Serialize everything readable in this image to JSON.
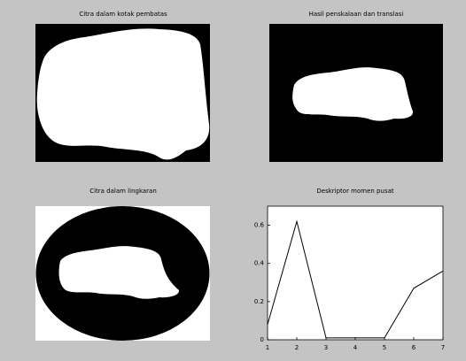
{
  "images": [
    {
      "title": "Citra dalam kotak pembatas"
    },
    {
      "title": "Hasil penskalaan dan translasi"
    },
    {
      "title": "Citra dalam lingkaran"
    }
  ],
  "chart_data": {
    "type": "line",
    "title": "Deskriptor momen pusat",
    "x": [
      1,
      2,
      3,
      4,
      5,
      6,
      7
    ],
    "values": [
      0.08,
      0.62,
      0.01,
      0.01,
      0.01,
      0.27,
      0.36
    ],
    "color": "#000000",
    "xlim": [
      1,
      7
    ],
    "xticks": [
      1,
      2,
      3,
      4,
      5,
      6,
      7
    ],
    "ylim": [
      0,
      0.7
    ],
    "yticks": [
      0,
      0.2,
      0.4,
      0.6
    ]
  }
}
